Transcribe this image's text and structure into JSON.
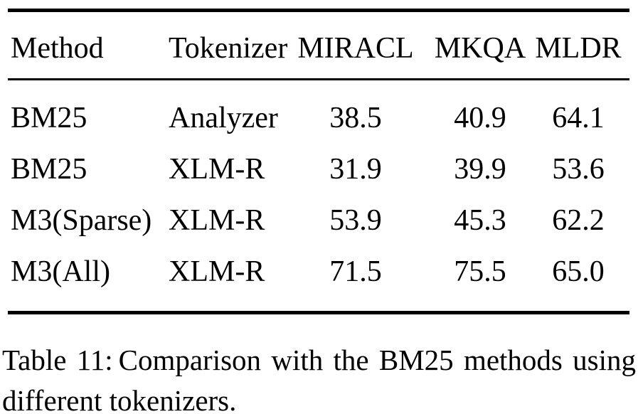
{
  "colors": {
    "text": "#000000",
    "background": "#ffffff",
    "rule": "#000000"
  },
  "table": {
    "columns": [
      "Method",
      "Tokenizer",
      "MIRACL",
      "MKQA",
      "MLDR"
    ],
    "rows": [
      [
        "BM25",
        "Analyzer",
        "38.5",
        "40.9",
        "64.1"
      ],
      [
        "BM25",
        "XLM-R",
        "31.9",
        "39.9",
        "53.6"
      ],
      [
        "M3(Sparse)",
        "XLM-R",
        "53.9",
        "45.3",
        "62.2"
      ],
      [
        "M3(All)",
        "XLM-R",
        "71.5",
        "75.5",
        "65.0"
      ]
    ]
  },
  "caption": {
    "prefix": "Table 11:",
    "line1_rest": "Comparison with the BM25 methods using",
    "line2": "different tokenizers."
  },
  "chart_data": {
    "type": "table",
    "title": "Table 11: Comparison with the BM25 methods using different tokenizers.",
    "columns": [
      "Method",
      "Tokenizer",
      "MIRACL",
      "MKQA",
      "MLDR"
    ],
    "series": [
      {
        "name": "BM25 / Analyzer",
        "values": [
          38.5,
          40.9,
          64.1
        ]
      },
      {
        "name": "BM25 / XLM-R",
        "values": [
          31.9,
          39.9,
          53.6
        ]
      },
      {
        "name": "M3(Sparse) / XLM-R",
        "values": [
          53.9,
          45.3,
          62.2
        ]
      },
      {
        "name": "M3(All) / XLM-R",
        "values": [
          71.5,
          75.5,
          65.0
        ]
      }
    ]
  }
}
